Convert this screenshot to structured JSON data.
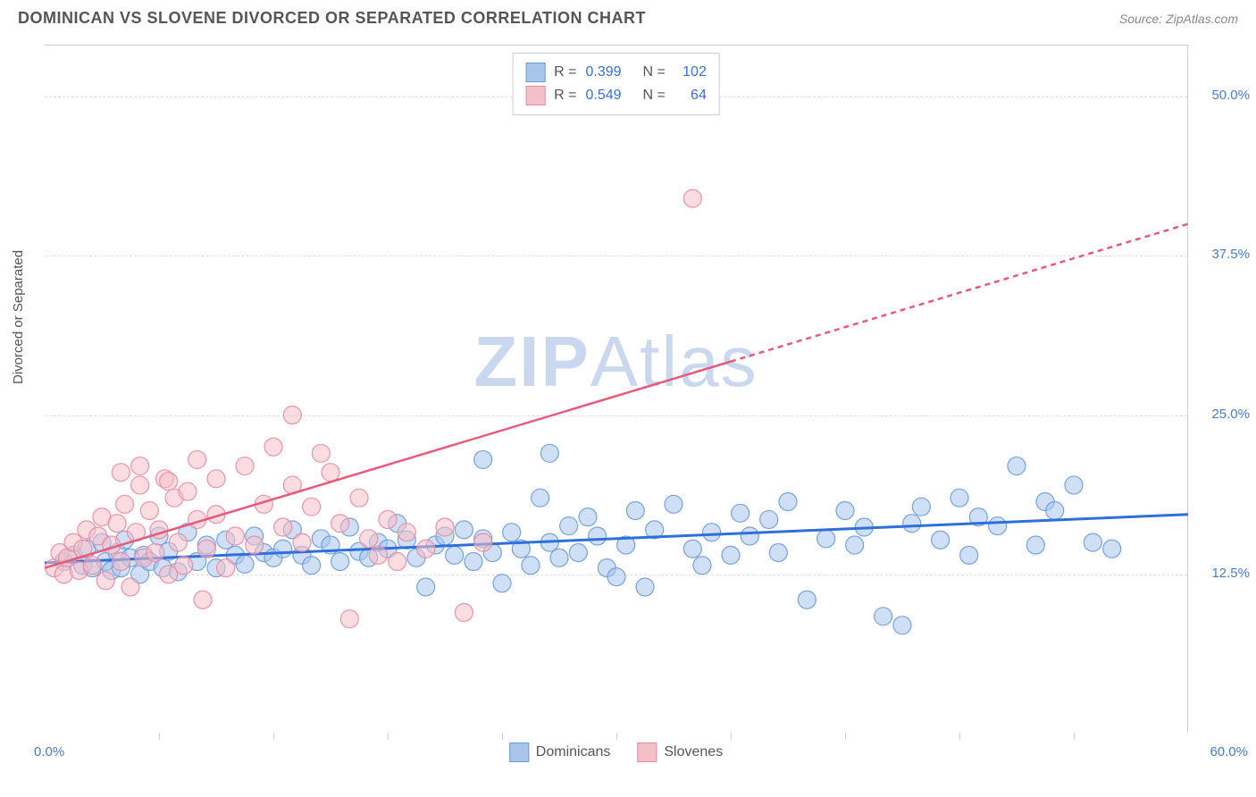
{
  "title": "DOMINICAN VS SLOVENE DIVORCED OR SEPARATED CORRELATION CHART",
  "source": "Source: ZipAtlas.com",
  "y_axis_label": "Divorced or Separated",
  "watermark": "ZIPAtlas",
  "chart": {
    "type": "scatter",
    "xlim": [
      0,
      60
    ],
    "ylim": [
      0,
      54
    ],
    "x_ticks_major": [
      0,
      60
    ],
    "x_tick_labels": [
      "0.0%",
      "60.0%"
    ],
    "x_minor_ticks": [
      6,
      12,
      18,
      24,
      30,
      36,
      42,
      48,
      54
    ],
    "y_ticks": [
      12.5,
      25.0,
      37.5,
      50.0
    ],
    "y_tick_labels": [
      "12.5%",
      "25.0%",
      "37.5%",
      "50.0%"
    ],
    "background_color": "#ffffff",
    "grid_color": "#dddddd",
    "grid_dash": "4,4",
    "marker_radius": 10,
    "marker_opacity": 0.55,
    "marker_stroke_opacity": 0.9,
    "series": [
      {
        "name": "Dominicans",
        "color_fill": "#a8c5ec",
        "color_stroke": "#6a9ad8",
        "r": 0.399,
        "n": 102,
        "trend": {
          "x1": 0,
          "y1": 13.4,
          "x2": 60,
          "y2": 17.2,
          "solid_until_x": 60,
          "color": "#2e6fd8",
          "width": 3
        },
        "points": [
          [
            1,
            13.5
          ],
          [
            1.5,
            14
          ],
          [
            2,
            13.2
          ],
          [
            2.2,
            14.5
          ],
          [
            2.5,
            13
          ],
          [
            3,
            15
          ],
          [
            3.2,
            13.5
          ],
          [
            3.5,
            12.8
          ],
          [
            3.8,
            14.2
          ],
          [
            4,
            13
          ],
          [
            4.2,
            15.2
          ],
          [
            4.5,
            13.8
          ],
          [
            5,
            12.5
          ],
          [
            5.2,
            14
          ],
          [
            5.5,
            13.5
          ],
          [
            6,
            15.5
          ],
          [
            6.2,
            13
          ],
          [
            6.5,
            14.3
          ],
          [
            7,
            12.7
          ],
          [
            7.5,
            15.8
          ],
          [
            8,
            13.5
          ],
          [
            8.5,
            14.8
          ],
          [
            9,
            13
          ],
          [
            9.5,
            15.2
          ],
          [
            10,
            14
          ],
          [
            10.5,
            13.3
          ],
          [
            11,
            15.5
          ],
          [
            11.5,
            14.2
          ],
          [
            12,
            13.8
          ],
          [
            12.5,
            14.5
          ],
          [
            13,
            16
          ],
          [
            13.5,
            14
          ],
          [
            14,
            13.2
          ],
          [
            14.5,
            15.3
          ],
          [
            15,
            14.8
          ],
          [
            15.5,
            13.5
          ],
          [
            16,
            16.2
          ],
          [
            16.5,
            14.3
          ],
          [
            17,
            13.8
          ],
          [
            17.5,
            15
          ],
          [
            18,
            14.5
          ],
          [
            18.5,
            16.5
          ],
          [
            19,
            15.2
          ],
          [
            19.5,
            13.8
          ],
          [
            20,
            11.5
          ],
          [
            20.5,
            14.8
          ],
          [
            21,
            15.5
          ],
          [
            21.5,
            14
          ],
          [
            22,
            16
          ],
          [
            22.5,
            13.5
          ],
          [
            23,
            15.3
          ],
          [
            23.5,
            14.2
          ],
          [
            24,
            11.8
          ],
          [
            24.5,
            15.8
          ],
          [
            25,
            14.5
          ],
          [
            25.5,
            13.2
          ],
          [
            26,
            18.5
          ],
          [
            26.5,
            15
          ],
          [
            27,
            13.8
          ],
          [
            27.5,
            16.3
          ],
          [
            28,
            14.2
          ],
          [
            28.5,
            17
          ],
          [
            29,
            15.5
          ],
          [
            29.5,
            13
          ],
          [
            30,
            12.3
          ],
          [
            30.5,
            14.8
          ],
          [
            31,
            17.5
          ],
          [
            31.5,
            11.5
          ],
          [
            32,
            16
          ],
          [
            33,
            18
          ],
          [
            34,
            14.5
          ],
          [
            34.5,
            13.2
          ],
          [
            35,
            15.8
          ],
          [
            36,
            14
          ],
          [
            36.5,
            17.3
          ],
          [
            37,
            15.5
          ],
          [
            38,
            16.8
          ],
          [
            38.5,
            14.2
          ],
          [
            39,
            18.2
          ],
          [
            40,
            10.5
          ],
          [
            41,
            15.3
          ],
          [
            42,
            17.5
          ],
          [
            42.5,
            14.8
          ],
          [
            43,
            16.2
          ],
          [
            44,
            9.2
          ],
          [
            45,
            8.5
          ],
          [
            45.5,
            16.5
          ],
          [
            46,
            17.8
          ],
          [
            47,
            15.2
          ],
          [
            48,
            18.5
          ],
          [
            48.5,
            14
          ],
          [
            49,
            17
          ],
          [
            50,
            16.3
          ],
          [
            51,
            21
          ],
          [
            52,
            14.8
          ],
          [
            52.5,
            18.2
          ],
          [
            53,
            17.5
          ],
          [
            54,
            19.5
          ],
          [
            55,
            15
          ],
          [
            56,
            14.5
          ],
          [
            23,
            21.5
          ],
          [
            26.5,
            22
          ]
        ]
      },
      {
        "name": "Slovenes",
        "color_fill": "#f5bfc9",
        "color_stroke": "#e88a9e",
        "r": 0.549,
        "n": 64,
        "trend": {
          "x1": 0,
          "y1": 13.0,
          "x2": 60,
          "y2": 40,
          "solid_until_x": 36,
          "color": "#e85a7a",
          "width": 2.5
        },
        "points": [
          [
            0.5,
            13
          ],
          [
            0.8,
            14.2
          ],
          [
            1,
            12.5
          ],
          [
            1.2,
            13.8
          ],
          [
            1.5,
            15
          ],
          [
            1.8,
            12.8
          ],
          [
            2,
            14.5
          ],
          [
            2.2,
            16
          ],
          [
            2.5,
            13.2
          ],
          [
            2.8,
            15.5
          ],
          [
            3,
            17
          ],
          [
            3.2,
            12
          ],
          [
            3.5,
            14.8
          ],
          [
            3.8,
            16.5
          ],
          [
            4,
            13.5
          ],
          [
            4.2,
            18
          ],
          [
            4.5,
            11.5
          ],
          [
            4.8,
            15.8
          ],
          [
            5,
            19.5
          ],
          [
            5.2,
            13.8
          ],
          [
            5.5,
            17.5
          ],
          [
            5.8,
            14.2
          ],
          [
            6,
            16
          ],
          [
            6.3,
            20
          ],
          [
            6.5,
            12.5
          ],
          [
            6.8,
            18.5
          ],
          [
            7,
            15
          ],
          [
            7.3,
            13.2
          ],
          [
            7.5,
            19
          ],
          [
            8,
            16.8
          ],
          [
            8.3,
            10.5
          ],
          [
            8.5,
            14.5
          ],
          [
            9,
            17.2
          ],
          [
            9.5,
            13
          ],
          [
            10,
            15.5
          ],
          [
            10.5,
            21
          ],
          [
            11,
            14.8
          ],
          [
            11.5,
            18
          ],
          [
            12,
            22.5
          ],
          [
            12.5,
            16.2
          ],
          [
            13,
            19.5
          ],
          [
            13.5,
            15
          ],
          [
            14,
            17.8
          ],
          [
            14.5,
            22
          ],
          [
            15,
            20.5
          ],
          [
            15.5,
            16.5
          ],
          [
            16,
            9
          ],
          [
            16.5,
            18.5
          ],
          [
            17,
            15.3
          ],
          [
            17.5,
            14
          ],
          [
            18,
            16.8
          ],
          [
            18.5,
            13.5
          ],
          [
            19,
            15.8
          ],
          [
            20,
            14.5
          ],
          [
            21,
            16.2
          ],
          [
            22,
            9.5
          ],
          [
            23,
            15
          ],
          [
            13,
            25
          ],
          [
            4,
            20.5
          ],
          [
            5,
            21
          ],
          [
            6.5,
            19.8
          ],
          [
            8,
            21.5
          ],
          [
            9,
            20
          ],
          [
            34,
            42
          ]
        ]
      }
    ]
  },
  "correlation_legend": {
    "rows": [
      {
        "swatch_fill": "#a8c5ec",
        "swatch_stroke": "#6a9ad8",
        "r_label": "R =",
        "r_val": "0.399",
        "n_label": "N =",
        "n_val": "102"
      },
      {
        "swatch_fill": "#f5bfc9",
        "swatch_stroke": "#e88a9e",
        "r_label": "R =",
        "r_val": "0.549",
        "n_label": "N =",
        "n_val": "64"
      }
    ]
  },
  "bottom_legend": [
    {
      "swatch_fill": "#a8c5ec",
      "swatch_stroke": "#6a9ad8",
      "label": "Dominicans"
    },
    {
      "swatch_fill": "#f5bfc9",
      "swatch_stroke": "#e88a9e",
      "label": "Slovenes"
    }
  ]
}
